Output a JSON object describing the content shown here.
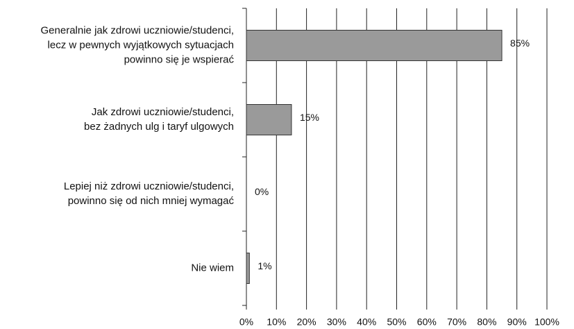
{
  "chart_data": {
    "type": "barh",
    "categories": [
      "Generalnie jak zdrowi uczniowie/studenci,\nlecz w pewnych wyjątkowych sytuacjach\npowinno się je wspierać",
      "Jak zdrowi uczniowie/studenci,\nbez żadnych ulg i taryf ulgowych",
      "Lepiej niż zdrowi uczniowie/studenci,\npowinno się od nich mniej wymagać",
      "Nie wiem"
    ],
    "values": [
      85,
      15,
      0,
      1
    ],
    "value_labels": [
      "85%",
      "15%",
      "0%",
      "1%"
    ],
    "color": "#9a9a9a",
    "xlim": [
      0,
      100
    ],
    "xticks": [
      {
        "value": 0,
        "label": "0%"
      },
      {
        "value": 10,
        "label": "10%"
      },
      {
        "value": 20,
        "label": "20%"
      },
      {
        "value": 30,
        "label": "30%"
      },
      {
        "value": 40,
        "label": "40%"
      },
      {
        "value": 50,
        "label": "50%"
      },
      {
        "value": 60,
        "label": "60%"
      },
      {
        "value": 70,
        "label": "70%"
      },
      {
        "value": 80,
        "label": "80%"
      },
      {
        "value": 90,
        "label": "90%"
      },
      {
        "value": 100,
        "label": "100%"
      }
    ],
    "grid": true
  }
}
